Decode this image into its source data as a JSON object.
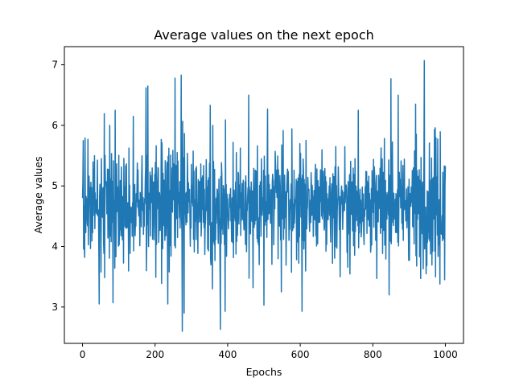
{
  "chart_data": {
    "type": "line",
    "title": "Average values on the next epoch",
    "xlabel": "Epochs",
    "ylabel": "Average values",
    "xlim": [
      -50,
      1050
    ],
    "ylim": [
      2.4,
      7.3
    ],
    "xticks": [
      0,
      200,
      400,
      600,
      800,
      1000
    ],
    "yticks": [
      3,
      4,
      5,
      6,
      7
    ],
    "grid": false,
    "line_color": "#1f77b4",
    "series": [
      {
        "n_points": 1001,
        "x_range": [
          0,
          1000
        ],
        "mean": 4.7,
        "notable_points": [
          {
            "x": 0,
            "y": 4.8
          },
          {
            "x": 2,
            "y": 5.75
          },
          {
            "x": 6,
            "y": 3.82
          },
          {
            "x": 46,
            "y": 3.05
          },
          {
            "x": 75,
            "y": 6.0
          },
          {
            "x": 84,
            "y": 3.07
          },
          {
            "x": 90,
            "y": 6.25
          },
          {
            "x": 140,
            "y": 6.15
          },
          {
            "x": 175,
            "y": 6.62
          },
          {
            "x": 180,
            "y": 6.65
          },
          {
            "x": 235,
            "y": 3.05
          },
          {
            "x": 255,
            "y": 6.78
          },
          {
            "x": 272,
            "y": 6.83
          },
          {
            "x": 275,
            "y": 2.6
          },
          {
            "x": 280,
            "y": 2.9
          },
          {
            "x": 352,
            "y": 6.33
          },
          {
            "x": 358,
            "y": 3.3
          },
          {
            "x": 380,
            "y": 2.63
          },
          {
            "x": 393,
            "y": 2.93
          },
          {
            "x": 458,
            "y": 6.5
          },
          {
            "x": 470,
            "y": 3.32
          },
          {
            "x": 500,
            "y": 3.03
          },
          {
            "x": 510,
            "y": 6.27
          },
          {
            "x": 548,
            "y": 3.25
          },
          {
            "x": 605,
            "y": 2.93
          },
          {
            "x": 710,
            "y": 3.5
          },
          {
            "x": 760,
            "y": 6.25
          },
          {
            "x": 811,
            "y": 3.47
          },
          {
            "x": 850,
            "y": 6.77
          },
          {
            "x": 870,
            "y": 6.5
          },
          {
            "x": 918,
            "y": 6.35
          },
          {
            "x": 932,
            "y": 3.47
          },
          {
            "x": 942,
            "y": 7.07
          },
          {
            "x": 970,
            "y": 5.93
          },
          {
            "x": 985,
            "y": 3.38
          },
          {
            "x": 998,
            "y": 3.45
          },
          {
            "x": 1000,
            "y": 5.33
          }
        ]
      }
    ]
  }
}
